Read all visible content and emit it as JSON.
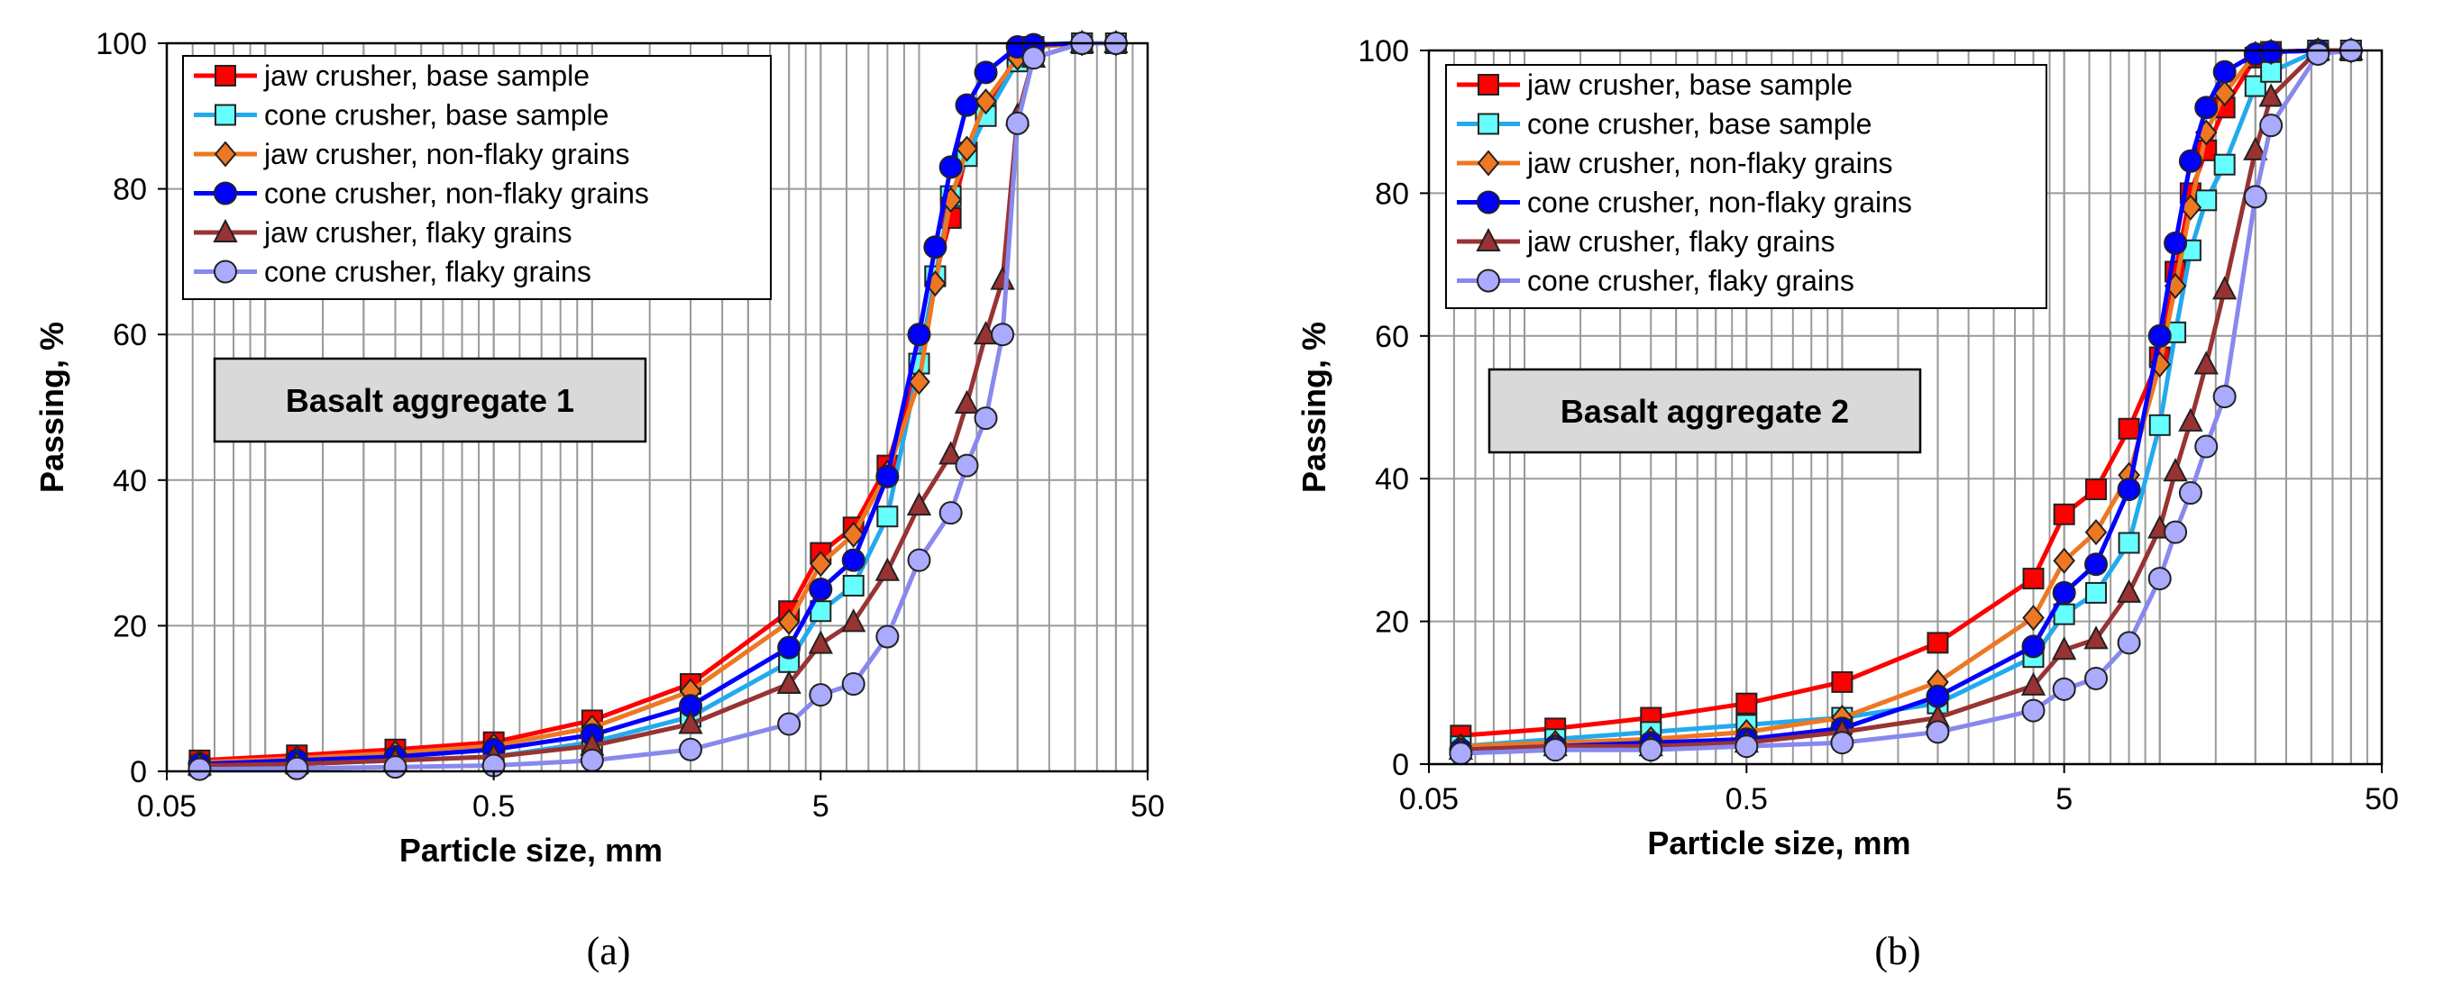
{
  "chart_data": [
    {
      "type": "line",
      "panel_label": "(a)",
      "annotation": "Basalt aggregate 1",
      "xlabel": "Particle size, mm",
      "ylabel": "Passing, %",
      "xscale": "log",
      "xlim": [
        0.05,
        50
      ],
      "ylim": [
        0,
        100
      ],
      "xticks": [
        0.05,
        0.5,
        5,
        50
      ],
      "xtick_labels": [
        "0.05",
        "0.5",
        "5",
        "50"
      ],
      "yticks": [
        0,
        20,
        40,
        60,
        80,
        100
      ],
      "ytick_labels": [
        "0",
        "20",
        "40",
        "60",
        "80",
        "100"
      ],
      "grid": true,
      "legend_position": "top-left",
      "series": [
        {
          "name": "jaw crusher, base sample",
          "color": "#ff0000",
          "marker": "square",
          "fill": "#ff0000",
          "x": [
            0.063,
            0.125,
            0.25,
            0.5,
            1,
            2,
            4,
            5,
            6.3,
            8,
            10,
            11.2,
            12.5,
            14,
            16,
            20,
            22.4,
            31.5,
            40
          ],
          "y": [
            1.5,
            2.2,
            3.0,
            4.0,
            7.0,
            12.0,
            22.0,
            30.0,
            33.5,
            42.0,
            56.0,
            68.0,
            76.0,
            85.0,
            91.0,
            98.5,
            99.5,
            100,
            100
          ]
        },
        {
          "name": "cone crusher, base sample",
          "color": "#22aaee",
          "marker": "square",
          "fill": "#66ffff",
          "x": [
            0.063,
            0.125,
            0.25,
            0.5,
            1,
            2,
            4,
            5,
            6.3,
            8,
            10,
            11.2,
            12.5,
            14,
            16,
            20,
            22.4,
            31.5,
            40
          ],
          "y": [
            0.8,
            1.0,
            1.5,
            2.0,
            4.0,
            7.5,
            15.0,
            22.0,
            25.5,
            35.0,
            56.0,
            68.0,
            79.0,
            84.5,
            90.0,
            97.5,
            99.5,
            100,
            100
          ]
        },
        {
          "name": "jaw crusher, non-flaky grains",
          "color": "#ee7722",
          "marker": "diamond",
          "fill": "#ee7722",
          "x": [
            0.063,
            0.125,
            0.25,
            0.5,
            1,
            2,
            4,
            5,
            6.3,
            8,
            10,
            11.2,
            12.5,
            14,
            16,
            20,
            22.4,
            31.5,
            40
          ],
          "y": [
            1.2,
            1.8,
            2.5,
            3.5,
            6.0,
            11.0,
            20.5,
            28.5,
            32.5,
            41.0,
            53.5,
            67.0,
            78.5,
            85.5,
            92.0,
            98.0,
            99.5,
            100,
            100
          ]
        },
        {
          "name": "cone crusher, non-flaky grains",
          "color": "#0000ff",
          "marker": "circle",
          "fill": "#0000ff",
          "x": [
            0.063,
            0.125,
            0.25,
            0.5,
            1,
            2,
            4,
            5,
            6.3,
            8,
            10,
            11.2,
            12.5,
            14,
            16,
            20,
            22.4,
            31.5,
            40
          ],
          "y": [
            1.0,
            1.5,
            2.0,
            3.0,
            5.0,
            9.0,
            17.0,
            25.0,
            29.0,
            40.5,
            60.0,
            72.0,
            83.0,
            91.5,
            96.0,
            99.5,
            99.8,
            100,
            100
          ]
        },
        {
          "name": "jaw crusher, flaky grains",
          "color": "#993333",
          "marker": "triangle",
          "fill": "#993333",
          "x": [
            0.063,
            0.125,
            0.25,
            0.5,
            1,
            2,
            4,
            5,
            6.3,
            8,
            10,
            12.5,
            14,
            16,
            18,
            20,
            22.4,
            31.5,
            40
          ],
          "y": [
            0.8,
            1.0,
            1.5,
            2.0,
            3.5,
            6.5,
            12.0,
            17.5,
            20.5,
            27.5,
            36.5,
            43.5,
            50.5,
            60.0,
            67.5,
            90.0,
            98.0,
            100,
            100
          ]
        },
        {
          "name": "cone crusher, flaky grains",
          "color": "#8888ee",
          "marker": "circle",
          "fill": "#aaaaff",
          "x": [
            0.063,
            0.125,
            0.25,
            0.5,
            1,
            2,
            4,
            5,
            6.3,
            8,
            10,
            12.5,
            14,
            16,
            18,
            20,
            22.4,
            31.5,
            40
          ],
          "y": [
            0.3,
            0.4,
            0.6,
            0.8,
            1.5,
            3.0,
            6.5,
            10.5,
            12.0,
            18.5,
            29.0,
            35.5,
            42.0,
            48.5,
            60.0,
            89.0,
            98.0,
            100,
            100
          ]
        }
      ]
    },
    {
      "type": "line",
      "panel_label": "(b)",
      "annotation": "Basalt aggregate 2",
      "xlabel": "Particle size, mm",
      "ylabel": "Passing, %",
      "xscale": "log",
      "xlim": [
        0.05,
        50
      ],
      "ylim": [
        0,
        100
      ],
      "xticks": [
        0.05,
        0.5,
        5,
        50
      ],
      "xtick_labels": [
        "0.05",
        "0.5",
        "5",
        "50"
      ],
      "yticks": [
        0,
        20,
        40,
        60,
        80,
        100
      ],
      "ytick_labels": [
        "0",
        "20",
        "40",
        "60",
        "80",
        "100"
      ],
      "grid": true,
      "legend_position": "top-left",
      "series": [
        {
          "name": "jaw crusher, base sample",
          "color": "#ff0000",
          "marker": "square",
          "fill": "#ff0000",
          "x": [
            0.063,
            0.125,
            0.25,
            0.5,
            1,
            2,
            4,
            5,
            6.3,
            8,
            10,
            11.2,
            12.5,
            14,
            16,
            20,
            22.4,
            31.5,
            40
          ],
          "y": [
            4.0,
            5.0,
            6.5,
            8.5,
            11.5,
            17.0,
            26.0,
            35.0,
            38.5,
            47.0,
            57.0,
            69.0,
            80.0,
            86.0,
            92.0,
            99.0,
            99.8,
            100,
            100
          ]
        },
        {
          "name": "cone crusher, base sample",
          "color": "#22aaee",
          "marker": "square",
          "fill": "#66ffff",
          "x": [
            0.063,
            0.125,
            0.25,
            0.5,
            1,
            2,
            4,
            5,
            6.3,
            8,
            10,
            11.2,
            12.5,
            14,
            16,
            20,
            22.4,
            31.5,
            40
          ],
          "y": [
            2.5,
            3.5,
            4.5,
            5.5,
            6.5,
            8.5,
            15.0,
            21.0,
            24.0,
            31.0,
            47.5,
            60.5,
            72.0,
            79.0,
            84.0,
            95.0,
            97.0,
            100,
            100
          ]
        },
        {
          "name": "jaw crusher, non-flaky grains",
          "color": "#ee7722",
          "marker": "diamond",
          "fill": "#ee7722",
          "x": [
            0.063,
            0.125,
            0.25,
            0.5,
            1,
            2,
            4,
            5,
            6.3,
            8,
            10,
            11.2,
            12.5,
            14,
            16,
            20,
            22.4,
            31.5,
            40
          ],
          "y": [
            2.5,
            3.0,
            3.5,
            4.5,
            6.5,
            11.5,
            20.5,
            28.5,
            32.5,
            40.5,
            56.0,
            67.0,
            78.0,
            88.5,
            94.0,
            99.5,
            99.8,
            100,
            100
          ]
        },
        {
          "name": "cone crusher, non-flaky grains",
          "color": "#0000ff",
          "marker": "circle",
          "fill": "#0000ff",
          "x": [
            0.063,
            0.125,
            0.25,
            0.5,
            1,
            2,
            4,
            5,
            6.3,
            8,
            10,
            11.2,
            12.5,
            14,
            16,
            20,
            22.4,
            31.5,
            40
          ],
          "y": [
            2.0,
            2.5,
            3.0,
            3.5,
            5.0,
            9.5,
            16.5,
            24.0,
            28.0,
            38.5,
            60.0,
            73.0,
            84.5,
            92.0,
            97.0,
            99.5,
            99.8,
            100,
            100
          ]
        },
        {
          "name": "jaw crusher, flaky grains",
          "color": "#993333",
          "marker": "triangle",
          "fill": "#993333",
          "x": [
            0.063,
            0.125,
            0.25,
            0.5,
            1,
            2,
            4,
            5,
            6.3,
            8,
            10,
            11.2,
            12.5,
            14,
            16,
            20,
            22.4,
            31.5,
            40
          ],
          "y": [
            2.0,
            2.5,
            2.5,
            3.0,
            4.5,
            6.5,
            11.0,
            16.0,
            17.5,
            24.0,
            33.0,
            41.0,
            48.0,
            56.0,
            66.5,
            86.0,
            93.5,
            100,
            100
          ]
        },
        {
          "name": "cone crusher, flaky grains",
          "color": "#8888ee",
          "marker": "circle",
          "fill": "#aaaaff",
          "x": [
            0.063,
            0.125,
            0.25,
            0.5,
            1,
            2,
            4,
            5,
            6.3,
            8,
            10,
            11.2,
            12.5,
            14,
            16,
            20,
            22.4,
            31.5,
            40
          ],
          "y": [
            1.5,
            2.0,
            2.0,
            2.5,
            3.0,
            4.5,
            7.5,
            10.5,
            12.0,
            17.0,
            26.0,
            32.5,
            38.0,
            44.5,
            51.5,
            79.5,
            89.5,
            99.5,
            100
          ]
        }
      ]
    }
  ]
}
